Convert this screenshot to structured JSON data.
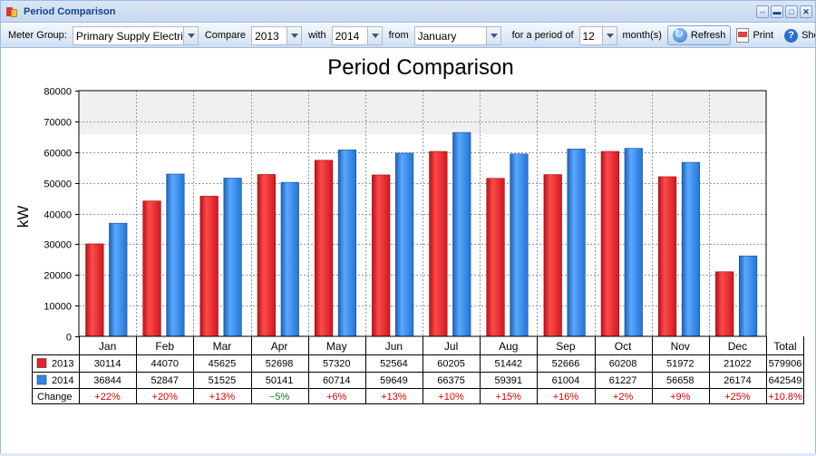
{
  "window": {
    "title": "Period Comparison"
  },
  "toolbar": {
    "meter_group_label": "Meter Group:",
    "meter_group_value": "Primary Supply Electricity",
    "compare_label": "Compare",
    "compare_value": "2013",
    "with_label": "with",
    "with_value": "2014",
    "from_label": "from",
    "from_value": "January",
    "period_label": "for a period of",
    "period_value": "12",
    "months_label": "month(s)",
    "refresh_label": "Refresh",
    "print_label": "Print",
    "help_label": "Show Help"
  },
  "chart_data": {
    "type": "bar",
    "title": "Period Comparison",
    "ylabel": "kW",
    "xlabel": "",
    "ylim": [
      0,
      80000
    ],
    "yticks": [
      0,
      10000,
      20000,
      30000,
      40000,
      50000,
      60000,
      70000,
      80000
    ],
    "grid": true,
    "categories": [
      "Jan",
      "Feb",
      "Mar",
      "Apr",
      "May",
      "Jun",
      "Jul",
      "Aug",
      "Sep",
      "Oct",
      "Nov",
      "Dec"
    ],
    "series": [
      {
        "name": "2013",
        "color": "#e8202a",
        "values": [
          30114,
          44070,
          45625,
          52698,
          57320,
          52564,
          60205,
          51442,
          52666,
          60208,
          51972,
          21022
        ],
        "total": "579906"
      },
      {
        "name": "2014",
        "color": "#2f86e6",
        "values": [
          36844,
          52847,
          51525,
          50141,
          60714,
          59649,
          66375,
          59391,
          61004,
          61227,
          56658,
          26174
        ],
        "total": "642549"
      }
    ],
    "table": {
      "total_label": "Total",
      "change_label": "Change",
      "change": [
        "+22%",
        "+20%",
        "+13%",
        "−5%",
        "+6%",
        "+13%",
        "+10%",
        "+15%",
        "+16%",
        "+2%",
        "+9%",
        "+25%"
      ],
      "change_total": "+10.8%"
    }
  },
  "colors": {
    "positive": "#e00000",
    "negative": "#108010"
  }
}
